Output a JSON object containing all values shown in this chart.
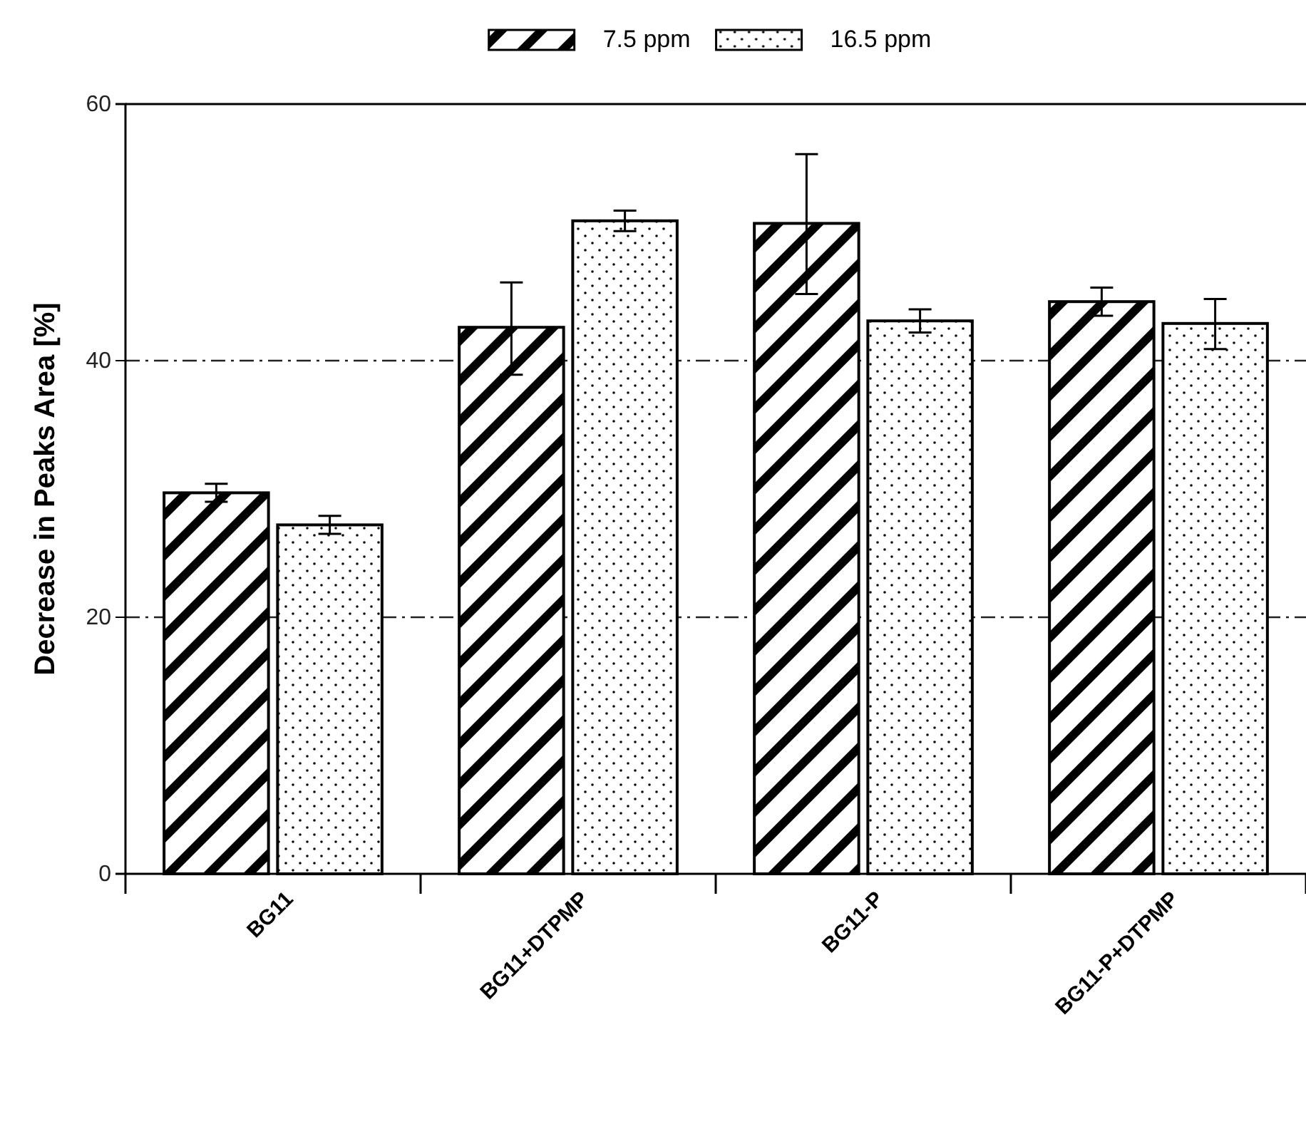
{
  "chart_data": {
    "type": "bar",
    "ylabel": "Decrease in Peaks Area [%]",
    "categories": [
      "BG11",
      "BG11+DTPMP",
      "BG11-P",
      "BG11-P+DTPMP"
    ],
    "series": [
      {
        "name": "7.5 ppm",
        "color": "#000000",
        "values": [
          29.7,
          42.6,
          50.7,
          44.6
        ],
        "errors": [
          0.7,
          [
            38.9,
            46.1
          ],
          [
            45.2,
            56.1
          ],
          1.1
        ]
      },
      {
        "name": "16.5 ppm",
        "color": "#000000",
        "values": [
          27.2,
          50.9,
          43.1,
          42.9
        ],
        "errors": [
          0.7,
          0.8,
          0.9,
          [
            40.9,
            44.8
          ]
        ]
      }
    ],
    "ylim": [
      0,
      60
    ],
    "yticks": [
      0,
      20,
      40,
      60
    ],
    "grid": "y",
    "legend": "top"
  }
}
